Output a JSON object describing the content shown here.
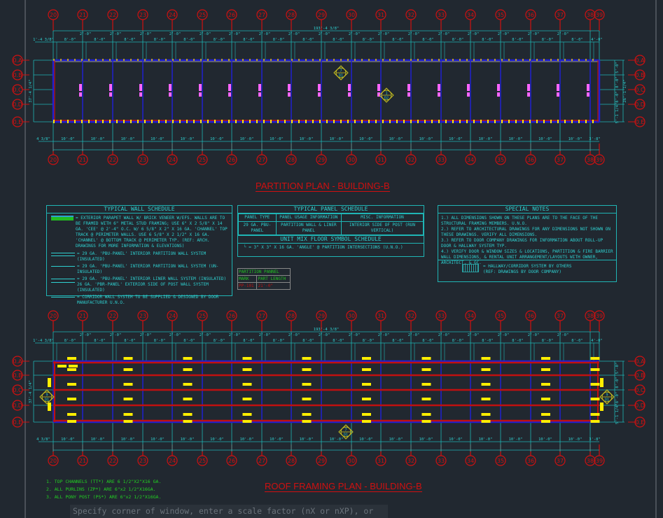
{
  "colors": {
    "background": "#212830",
    "grid_bubble": "#d01010",
    "dimension": "#1fb5b5",
    "wall_blue": "#2020d0",
    "wall_red": "#c01010",
    "panel_pink": "#ff66ff",
    "purlin_yellow": "#ffee00",
    "note_green": "#22d022"
  },
  "grid_columns": [
    "20",
    "21",
    "22",
    "23",
    "24",
    "25",
    "26",
    "27",
    "28",
    "29",
    "30",
    "31",
    "32",
    "33",
    "34",
    "35",
    "36",
    "37",
    "38",
    "39"
  ],
  "grid_rows": [
    "0.A",
    "0.B",
    "0.C",
    "0.D",
    "0.E"
  ],
  "partition_plan": {
    "title": "PARTITION PLAN - BUILDING-B",
    "overall_dim": "193'-4 3/8\"",
    "left_offset": "1'-4 3/8\"",
    "bay_dim": "8'-0\"",
    "corridor_dim": "2'-0\"",
    "end_dim": "4'-0\"",
    "bottom_bay_dim": "10'-0\"",
    "bottom_left": "4 3/8\"",
    "bottom_end": "3'-8\"",
    "left_height": "37'-4 1/4\"",
    "right_dims": [
      "5'-0\"",
      "8'-0\"",
      "8'-0\"",
      "5'-1 1/4\""
    ],
    "right_total": "26'-1 1/4\"",
    "tags": [
      {
        "top": "7",
        "bottom": "D1"
      },
      {
        "top": "1",
        "bottom": "D2"
      }
    ]
  },
  "wall_schedule": {
    "title": "TYPICAL WALL SCHEDULE",
    "items": [
      "= EXTERIOR PARAPET WALL W/ BRICK VENEER W/EFS. WALLS ARE TO BE FRAMED WITH 6\" METAL STUD FRAMING; USE 6\" X 2 5/8\" X 14 GA. 'CEE' @ 2'-4\" O.C. W/ 6 5/8\" X 2\" X 16 GA. 'CHANNEL' TOP TRACK @ PERIMETER WALLS. USE 6 5/8\" X 2 1/2\" X 16 GA. 'CHANNEL' @ BOTTOM TRACK @ PERIMETER TYP. (REF: ARCH. DRAWINGS FOR MORE INFORMATION & ELEVATIONS)",
      "= 29 GA. 'PBU-PANEL' INTERIOR PARTITION WALL SYSTEM (INSULATED)",
      "= 29 GA. 'PBU-PANEL' INTERIOR PARTITION WALL SYSTEM (UN-INSULATED)",
      "= 29 GA. 'PBU-PANEL' INTERIOR LINER WALL SYSTEM (INSULATED) 26 GA. 'PBR-PANEL' EXTERIOR SIDE OF POST WALL SYSTEM (INSULATED)",
      "= CORRIDOR WALL SYSTEM TO BE SUPPLIED & DESIGNED BY DOOR MANUFACTURER U.N.O."
    ]
  },
  "panel_schedule": {
    "title": "TYPICAL PANEL SCHEDULE",
    "headers": [
      "PANEL TYPE",
      "PANEL USAGE INFORMATION",
      "MISC. INFORMATION"
    ],
    "rows": [
      [
        "29 GA. PBU-PANEL",
        "PARTITION WALL & LINER PANEL",
        "INTERIOR SIDE OF POST (RUN VERTICAL)"
      ]
    ],
    "unit_mix_title": "UNIT MIX FLOOR SYMBOL SCHEDULE",
    "unit_mix_item": "= 3\" X 3\" X 16 GA. 'ANGLE' @ PARTITION INTERSECTIONS (U.N.O.)"
  },
  "partition_panel": {
    "title": "PARTITION PANNEL",
    "headers": [
      "MARK",
      "PART LENGTH"
    ],
    "rows": [
      [
        "PP-101",
        "21'-0\""
      ]
    ]
  },
  "special_notes": {
    "title": "SPECIAL NOTES",
    "items": [
      "1.) ALL DIMENSIONS SHOWN ON THESE PLANS ARE TO THE FACE OF THE STRUCTURAL FRAMING MEMBERS. U.N.O.",
      "2.) REFER TO ARCHITECTURAL DRAWINGS FOR ANY DIMENSIONS NOT SHOWN ON THESE DRAWINGS. VERIFY ALL DIMENSIONS.",
      "3.) REFER TO DOOR COMPANY DRAWINGS FOR INFORMATION ABOUT ROLL-UP DOOR & HALLWAY SYSTEM TYP.",
      "4.) VERIFY DOOR & WINDOW SIZES & LOCATIONS, PARTITION & FIRE BARRIER WALL DIMENSIONS, & RENTAL UNIT ARRANGEMENT/LAYOUTS WITH OWNER, ARCHITECT, & GC."
    ],
    "legend": "= HALLWAY/CORRIDOR SYSTEM BY OTHERS (REF: DRAWINGS BY DOOR COMPANY)"
  },
  "roof_plan": {
    "title": "ROOF FRAMING PLAN - BUILDING-B",
    "overall_dim": "193'-4 3/8\"",
    "left_offset": "1'-4 3/8\"",
    "bay_dim": "8'-0\"",
    "corridor_dim": "2'-0\"",
    "bottom_bay_dim": "10'-0\"",
    "bottom_left": "4 3/8\"",
    "bottom_end": "3'-8\"",
    "left_height": "37'-4 1/4\"",
    "right_dims": [
      "5'-0\"",
      "8'-0\"",
      "8'-0\"",
      "5'-1 1/4\""
    ],
    "tags": [
      {
        "top": "9",
        "bottom": "D1"
      },
      {
        "top": "7",
        "bottom": "D1"
      },
      {
        "top": "9",
        "bottom": "D1"
      }
    ],
    "notes": [
      "1. TOP CHANNELS (TT*) ARE 6 1/2\"X2\"X16 GA.",
      "2. ALL PURLINS (ZP*) ARE 6\"x2 1/2\"X16GA.",
      "3. ALL PONY POST (PS*) ARE 6\"x2 1/2\"X16GA."
    ]
  },
  "command_line": {
    "prompt": "Specify corner of window, enter a scale factor (nX or nXP), or"
  }
}
